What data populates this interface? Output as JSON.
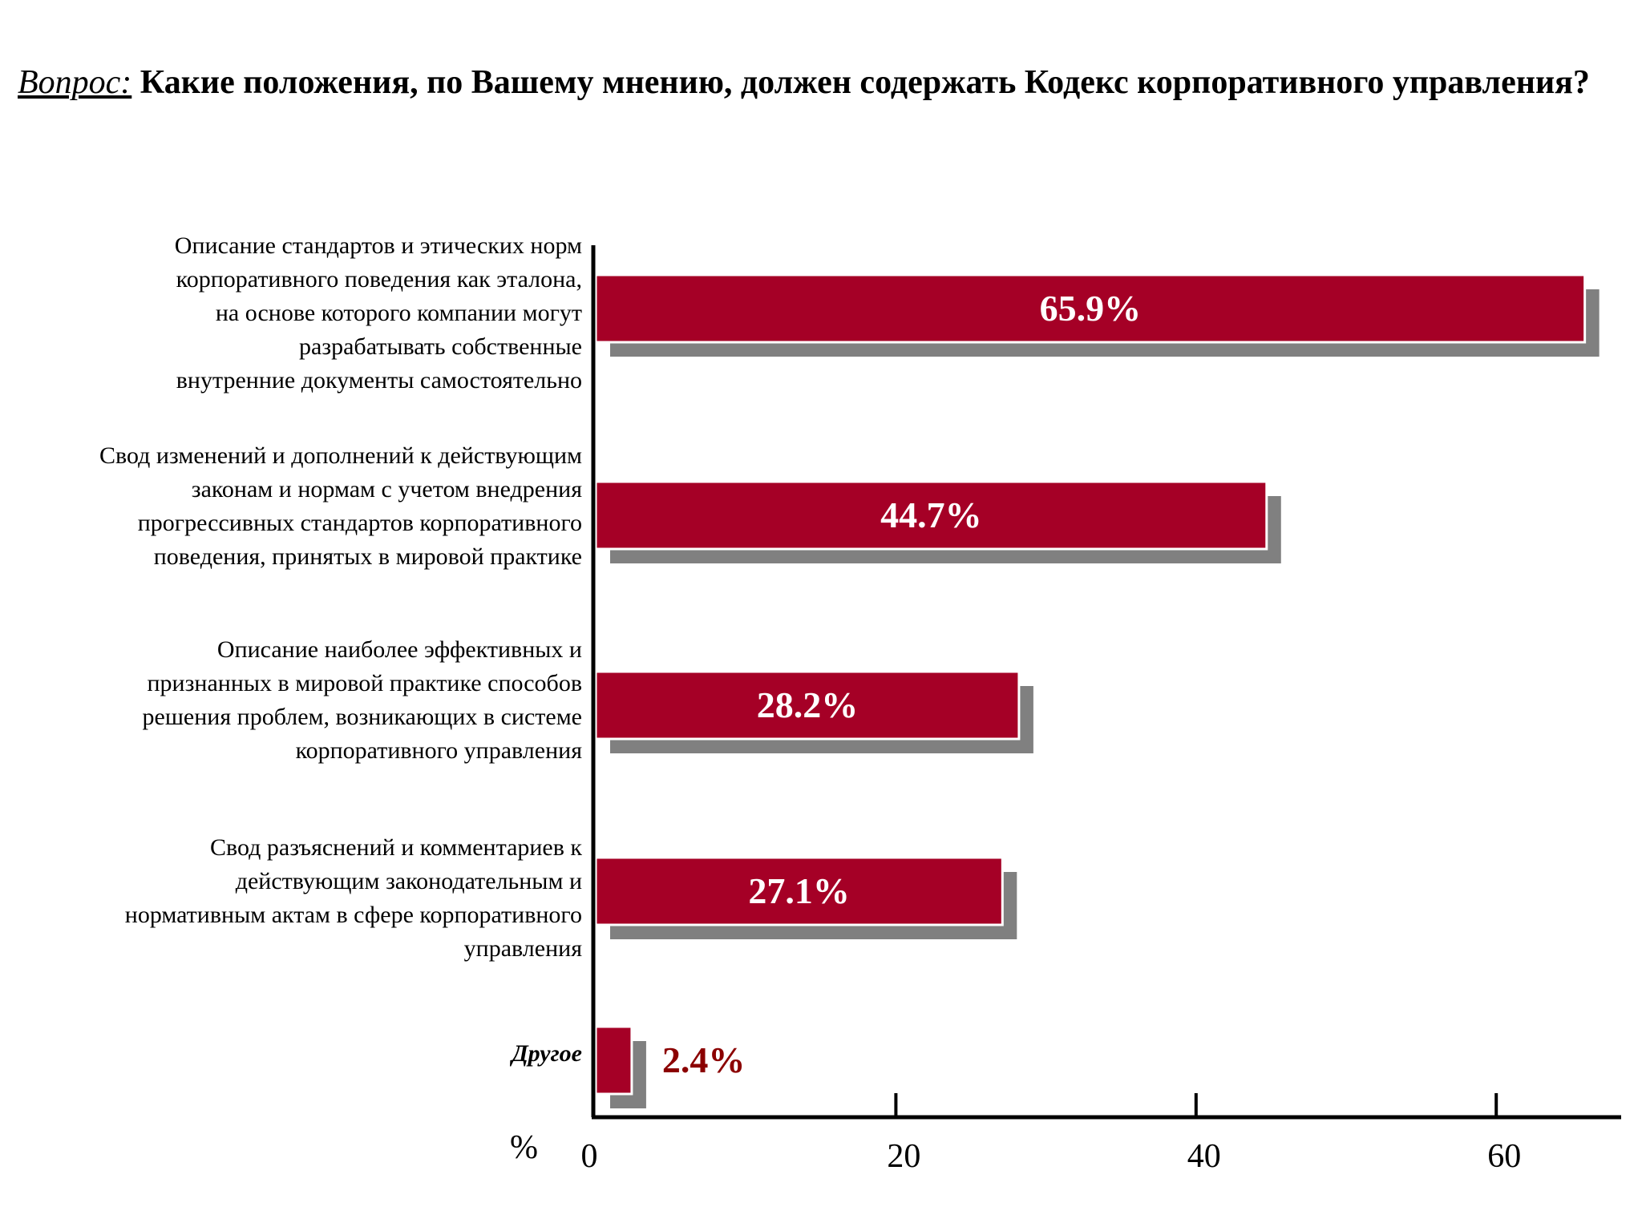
{
  "question": {
    "prefix": "Вопрос:",
    "text": " Какие положения, по Вашему мнению, должен содержать Кодекс корпоративного управления?"
  },
  "chart_data": {
    "type": "bar",
    "orientation": "horizontal",
    "categories": [
      "Описание стандартов и этических норм\nкорпоративного поведения как эталона,\nна основе которого компании могут\nразрабатывать собственные\nвнутренние документы самостоятельно",
      "Свод изменений и дополнений к действующим\nзаконам и нормам с учетом внедрения\nпрогрессивных стандартов корпоративного\nповедения, принятых в мировой практике",
      "Описание наиболее эффективных и\nпризнанных в мировой практике способов\nрешения проблем, возникающих в системе\nкорпоративного управления",
      "Свод разъяснений и комментариев к\nдействующим законодательным и\nнормативным актам в сфере корпоративного\nуправления",
      "Другое"
    ],
    "values": [
      65.9,
      44.7,
      28.2,
      27.1,
      2.4
    ],
    "value_labels": [
      "65.9%",
      "44.7%",
      "28.2%",
      "27.1%",
      "2.4%"
    ],
    "xlabel": "%",
    "xlim": [
      0,
      68.7
    ],
    "xticks": [
      0,
      20,
      40,
      60
    ],
    "xtick_labels": [
      "0",
      "20",
      "40",
      "60"
    ],
    "grid": false,
    "legend": "none",
    "colors": {
      "bar": "#A50026",
      "shadow": "#808080",
      "label_inside": "#FFFFFF",
      "label_outside": "#8B0000"
    }
  }
}
